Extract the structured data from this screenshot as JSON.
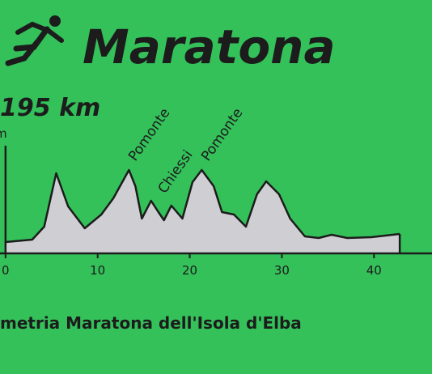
{
  "chart_data": {
    "type": "area",
    "title": "Maratona",
    "subtitle": "195 km",
    "y_label": "m",
    "caption": "metria Maratona dell'Isola d'Elba",
    "annotations": [
      {
        "text": "Pomonte",
        "x": 13.4
      },
      {
        "text": "Chiessi",
        "x": 16.6
      },
      {
        "text": "Pomonte",
        "x": 21.3
      }
    ],
    "x": [
      0,
      2.9,
      4.2,
      5.5,
      6.8,
      8.6,
      10.4,
      11.7,
      13.4,
      14.1,
      14.8,
      15.8,
      16.6,
      17.2,
      18,
      19.2,
      20.3,
      21.3,
      22.6,
      23.5,
      24.8,
      26.1,
      27.3,
      28.3,
      29.7,
      30.9,
      32.5,
      34,
      35.4,
      37.1,
      39.7,
      42.8
    ],
    "values": [
      14,
      17,
      33,
      99,
      58,
      31,
      48,
      68,
      103,
      83,
      43,
      65,
      51,
      41,
      59,
      43,
      88,
      103,
      83,
      51,
      48,
      33,
      73,
      89,
      73,
      43,
      21,
      19,
      23,
      19,
      20,
      24
    ],
    "color": "#cfcfd3",
    "xlim": [
      -0.6,
      46.3
    ],
    "xticks": [
      0,
      10,
      20,
      30,
      40
    ],
    "ylim": [
      0,
      133
    ]
  }
}
